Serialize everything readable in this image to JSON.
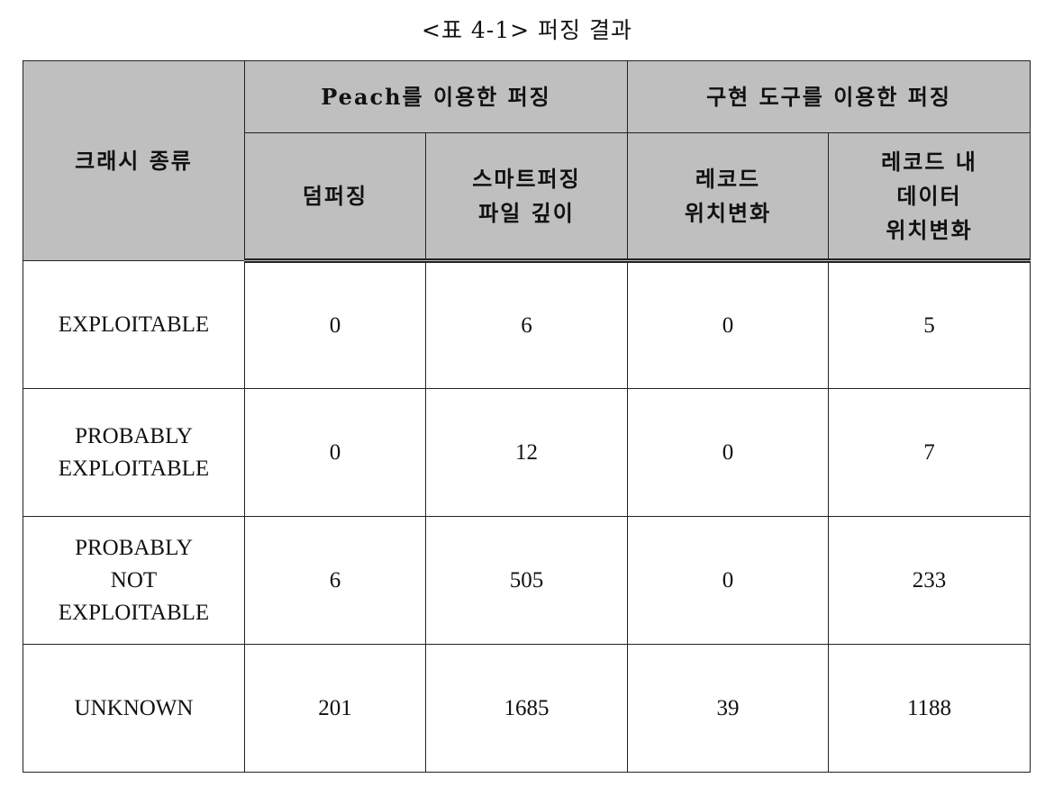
{
  "caption": "<표 4-1> 퍼징 결과",
  "header": {
    "crash_type": "크래시 종류",
    "group_peach": "Peach를 이용한 퍼징",
    "group_tool": "구현 도구를 이용한 퍼징",
    "col_dumb": "덤퍼징",
    "col_smart": [
      "스마트퍼징",
      "파일 깊이"
    ],
    "col_record": [
      "레코드",
      "위치변화"
    ],
    "col_data": [
      "레코드 내",
      "데이터",
      "위치변화"
    ]
  },
  "rows": [
    {
      "label": [
        "EXPLOITABLE"
      ],
      "values": [
        "0",
        "6",
        "0",
        "5"
      ]
    },
    {
      "label": [
        "PROBABLY",
        "EXPLOITABLE"
      ],
      "values": [
        "0",
        "12",
        "0",
        "7"
      ]
    },
    {
      "label": [
        "PROBABLY",
        "NOT",
        "EXPLOITABLE"
      ],
      "values": [
        "6",
        "505",
        "0",
        "233"
      ]
    },
    {
      "label": [
        "UNKNOWN"
      ],
      "values": [
        "201",
        "1685",
        "39",
        "1188"
      ]
    }
  ]
}
